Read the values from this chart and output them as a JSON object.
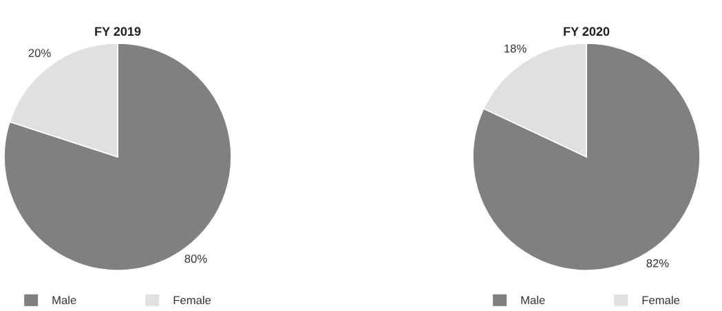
{
  "chart_data": [
    {
      "type": "pie",
      "title": "FY 2019",
      "categories": [
        "Male",
        "Female"
      ],
      "values": [
        80,
        20
      ],
      "colors": [
        "#808083",
        "#e0e0e2"
      ],
      "value_labels": [
        "80%",
        "20%"
      ],
      "legend": "bottom"
    },
    {
      "type": "pie",
      "title": "FY 2020",
      "categories": [
        "Male",
        "Female"
      ],
      "values": [
        82,
        18
      ],
      "colors": [
        "#808083",
        "#e0e0e2"
      ],
      "value_labels": [
        "82%",
        "18%"
      ],
      "legend": "bottom"
    }
  ]
}
